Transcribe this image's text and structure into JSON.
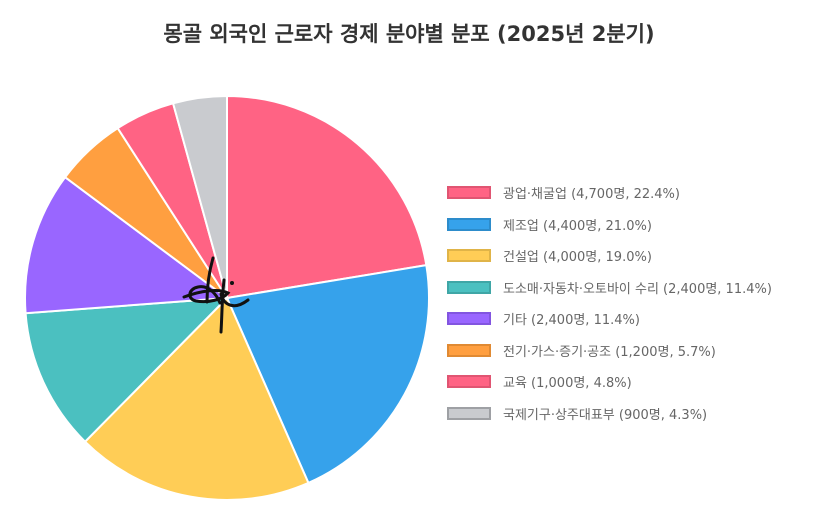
{
  "chart_data": {
    "type": "pie",
    "title": "몽골 외국인 근로자 경제 분야별 분포 (2025년 2분기)",
    "slices": [
      {
        "label": "광업·채굴업 (4,700명, 22.4%)",
        "value": 22.4,
        "color": "#ff6384",
        "border": "#e05572"
      },
      {
        "label": "제조업 (4,400명, 21.0%)",
        "value": 21.0,
        "color": "#36a2eb",
        "border": "#2d8ccb"
      },
      {
        "label": "건설업 (4,000명, 19.0%)",
        "value": 19.0,
        "color": "#ffcd56",
        "border": "#e0b448"
      },
      {
        "label": "도소매·자동차·오토바이 수리 (2,400명, 11.4%)",
        "value": 11.4,
        "color": "#4bc0c0",
        "border": "#3fa6a6"
      },
      {
        "label": "기타 (2,400명, 11.4%)",
        "value": 11.4,
        "color": "#9966ff",
        "border": "#8255e0"
      },
      {
        "label": "전기·가스·증기·공조 (1,200명, 5.7%)",
        "value": 5.7,
        "color": "#ff9f40",
        "border": "#e08a33"
      },
      {
        "label": "교육 (1,000명, 4.8%)",
        "value": 4.8,
        "color": "#ff6384",
        "border": "#e05572"
      },
      {
        "label": "국제기구·상주대표부 (900명, 4.3%)",
        "value": 4.3,
        "color": "#c9cbcf",
        "border": "#9ea0a4"
      }
    ],
    "legend_position": "right"
  }
}
